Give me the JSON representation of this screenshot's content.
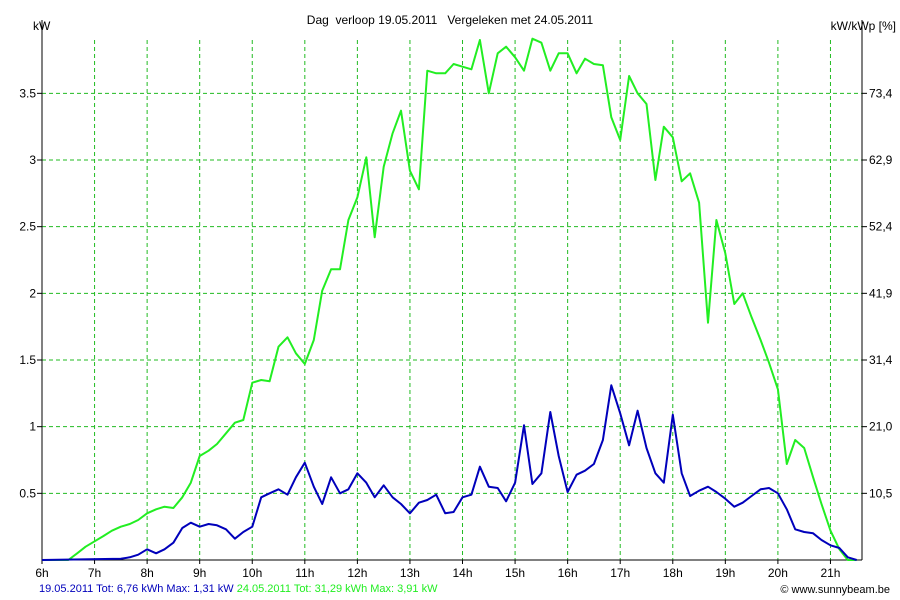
{
  "chart_data": {
    "type": "line",
    "title": "Dag  verloop 19.05.2011   Vergeleken met 24.05.2011",
    "ylabel_left": "kW",
    "ylabel_right": "kW/kWp [%]",
    "xlabel": "",
    "xlim": [
      6,
      21.6
    ],
    "ylim": [
      0,
      3.9
    ],
    "grid": true,
    "x_ticks": [
      "6h",
      "7h",
      "8h",
      "9h",
      "10h",
      "11h",
      "12h",
      "13h",
      "14h",
      "15h",
      "16h",
      "17h",
      "18h",
      "19h",
      "20h",
      "21h"
    ],
    "y_ticks": [
      {
        "value": 0.5,
        "label": "0.5"
      },
      {
        "value": 1,
        "label": "1"
      },
      {
        "value": 1.5,
        "label": "1.5"
      },
      {
        "value": 2,
        "label": "2"
      },
      {
        "value": 2.5,
        "label": "2.5"
      },
      {
        "value": 3,
        "label": "3"
      },
      {
        "value": 3.5,
        "label": "3.5"
      }
    ],
    "y2_ticks": [
      {
        "value": 0.5,
        "label": "10,5"
      },
      {
        "value": 1,
        "label": "21,0"
      },
      {
        "value": 1.5,
        "label": "31,4"
      },
      {
        "value": 2,
        "label": "41,9"
      },
      {
        "value": 2.5,
        "label": "52,4"
      },
      {
        "value": 3,
        "label": "62,9"
      },
      {
        "value": 3.5,
        "label": "73,4"
      }
    ],
    "series": [
      {
        "color": "#22ee22",
        "x": [
          6.0,
          6.5,
          6.67,
          6.83,
          7.0,
          7.17,
          7.33,
          7.5,
          7.67,
          7.83,
          8.0,
          8.17,
          8.33,
          8.5,
          8.67,
          8.83,
          9.0,
          9.17,
          9.33,
          9.5,
          9.67,
          9.83,
          10.0,
          10.17,
          10.33,
          10.5,
          10.67,
          10.83,
          11.0,
          11.17,
          11.33,
          11.5,
          11.67,
          11.83,
          12.0,
          12.17,
          12.33,
          12.5,
          12.67,
          12.83,
          13.0,
          13.17,
          13.33,
          13.5,
          13.67,
          13.83,
          14.0,
          14.17,
          14.33,
          14.5,
          14.67,
          14.83,
          15.0,
          15.17,
          15.33,
          15.5,
          15.67,
          15.83,
          16.0,
          16.17,
          16.33,
          16.5,
          16.67,
          16.83,
          17.0,
          17.17,
          17.33,
          17.5,
          17.67,
          17.83,
          18.0,
          18.17,
          18.33,
          18.5,
          18.67,
          18.83,
          19.0,
          19.17,
          19.33,
          19.5,
          19.67,
          19.83,
          20.0,
          20.17,
          20.33,
          20.5,
          20.67,
          20.83,
          21.0,
          21.17,
          21.33,
          21.5
        ],
        "values": [
          0,
          0,
          0.05,
          0.1,
          0.14,
          0.18,
          0.22,
          0.25,
          0.27,
          0.3,
          0.35,
          0.38,
          0.4,
          0.39,
          0.47,
          0.58,
          0.78,
          0.82,
          0.87,
          0.95,
          1.03,
          1.05,
          1.33,
          1.35,
          1.34,
          1.6,
          1.67,
          1.55,
          1.47,
          1.65,
          2.02,
          2.18,
          2.18,
          2.55,
          2.72,
          3.02,
          2.42,
          2.95,
          3.2,
          3.37,
          2.92,
          2.78,
          3.67,
          3.65,
          3.65,
          3.72,
          3.7,
          3.68,
          3.9,
          3.5,
          3.8,
          3.85,
          3.77,
          3.67,
          3.91,
          3.88,
          3.67,
          3.8,
          3.8,
          3.65,
          3.76,
          3.72,
          3.71,
          3.32,
          3.15,
          3.63,
          3.5,
          3.42,
          2.85,
          3.25,
          3.17,
          2.84,
          2.9,
          2.68,
          1.78,
          2.55,
          2.3,
          1.92,
          2.0,
          1.82,
          1.65,
          1.48,
          1.28,
          0.72,
          0.9,
          0.84,
          0.62,
          0.42,
          0.22,
          0.08,
          0,
          0
        ]
      },
      {
        "color": "#0000bb",
        "x": [
          6.0,
          7.5,
          7.67,
          7.83,
          8.0,
          8.17,
          8.33,
          8.5,
          8.67,
          8.83,
          9.0,
          9.17,
          9.33,
          9.5,
          9.67,
          9.83,
          10.0,
          10.17,
          10.33,
          10.5,
          10.67,
          10.83,
          11.0,
          11.17,
          11.33,
          11.5,
          11.67,
          11.83,
          12.0,
          12.17,
          12.33,
          12.5,
          12.67,
          12.83,
          13.0,
          13.17,
          13.33,
          13.5,
          13.67,
          13.83,
          14.0,
          14.17,
          14.33,
          14.5,
          14.67,
          14.83,
          15.0,
          15.17,
          15.33,
          15.5,
          15.67,
          15.83,
          16.0,
          16.17,
          16.33,
          16.5,
          16.67,
          16.83,
          17.0,
          17.17,
          17.33,
          17.5,
          17.67,
          17.83,
          18.0,
          18.17,
          18.33,
          18.5,
          18.67,
          18.83,
          19.0,
          19.17,
          19.33,
          19.5,
          19.67,
          19.83,
          20.0,
          20.17,
          20.33,
          20.5,
          20.67,
          20.83,
          21.0,
          21.17,
          21.33,
          21.5
        ],
        "values": [
          0,
          0.01,
          0.02,
          0.04,
          0.08,
          0.05,
          0.08,
          0.13,
          0.24,
          0.28,
          0.25,
          0.27,
          0.26,
          0.23,
          0.16,
          0.21,
          0.25,
          0.47,
          0.5,
          0.53,
          0.49,
          0.62,
          0.73,
          0.55,
          0.42,
          0.62,
          0.5,
          0.53,
          0.65,
          0.58,
          0.47,
          0.56,
          0.47,
          0.42,
          0.35,
          0.43,
          0.45,
          0.49,
          0.35,
          0.36,
          0.47,
          0.49,
          0.7,
          0.55,
          0.54,
          0.44,
          0.58,
          1.01,
          0.57,
          0.65,
          1.11,
          0.78,
          0.51,
          0.64,
          0.67,
          0.72,
          0.9,
          1.31,
          1.1,
          0.86,
          1.12,
          0.84,
          0.65,
          0.58,
          1.09,
          0.65,
          0.48,
          0.52,
          0.55,
          0.51,
          0.46,
          0.4,
          0.43,
          0.48,
          0.53,
          0.54,
          0.5,
          0.38,
          0.23,
          0.21,
          0.2,
          0.15,
          0.11,
          0.09,
          0.02,
          0
        ]
      }
    ]
  },
  "footer": {
    "blue_text": "19.05.2011 Tot: 6,76 kWh Max: 1,31 kW",
    "green_text": "24.05.2011 Tot: 31,29 kWh Max: 3,91 kW",
    "copyright": "© www.sunnybeam.be"
  },
  "colors": {
    "green": "#22ee22",
    "blue": "#0000bb",
    "grid": "#22bb22"
  }
}
